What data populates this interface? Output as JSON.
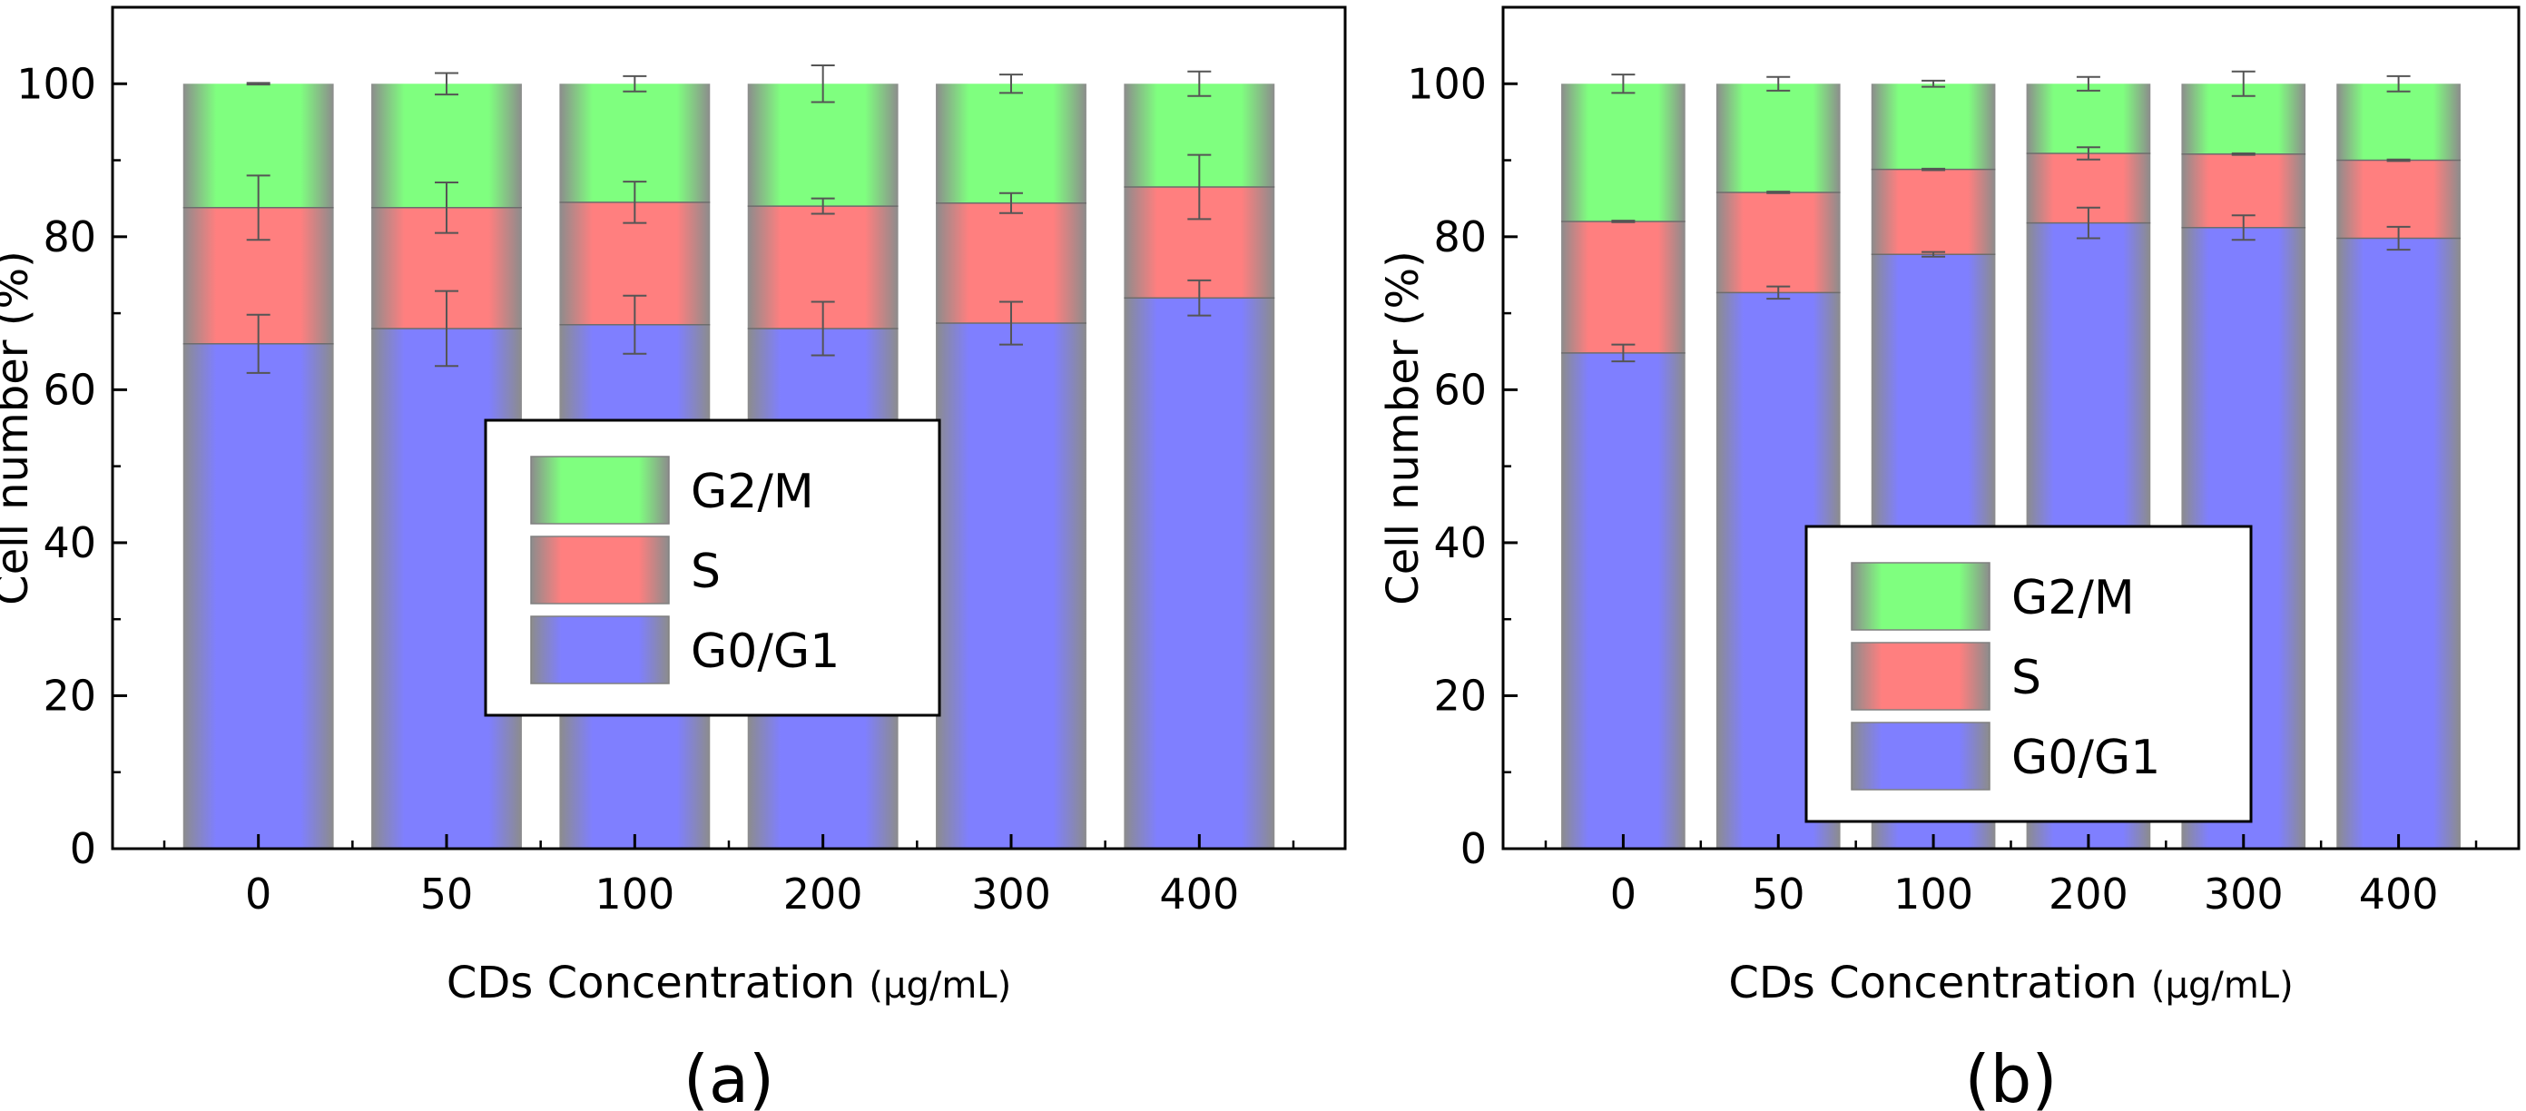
{
  "colors": {
    "G0/G1": "#7f7fff",
    "S": "#ff7f7f",
    "G2/M": "#7fff7f",
    "frame": "#000000",
    "error_bar": "#555555",
    "bar_edge": "#808080"
  },
  "chart_data": [
    {
      "type": "bar",
      "stacked": true,
      "panel_label": "(a)",
      "title": "",
      "xlabel": "CDs Concentration",
      "xlabel_unit": "(μg/mL)",
      "ylabel": "Cell number (%)",
      "categories": [
        "0",
        "50",
        "100",
        "200",
        "300",
        "400"
      ],
      "ylim": [
        0,
        110
      ],
      "yticks": [
        "0",
        "20",
        "40",
        "60",
        "80",
        "100"
      ],
      "legend_position": "center-right",
      "legend": [
        "G2/M",
        "S",
        "G0/G1"
      ],
      "series": [
        {
          "name": "G0/G1",
          "values": [
            66,
            68,
            68.5,
            68,
            68.7,
            72
          ],
          "errors": [
            3.8,
            4.9,
            3.8,
            3.5,
            2.8,
            2.3
          ]
        },
        {
          "name": "S",
          "values": [
            17.8,
            15.8,
            16,
            16,
            15.7,
            14.5
          ],
          "errors": [
            4.2,
            3.3,
            2.7,
            1.0,
            1.3,
            4.2
          ]
        },
        {
          "name": "G2/M",
          "values": [
            16.2,
            16.2,
            15.5,
            16,
            15.6,
            13.5
          ],
          "errors": [
            0.1,
            1.4,
            1.0,
            2.4,
            1.2,
            1.6
          ]
        }
      ]
    },
    {
      "type": "bar",
      "stacked": true,
      "panel_label": "(b)",
      "title": "",
      "xlabel": "CDs Concentration",
      "xlabel_unit": "(μg/mL)",
      "ylabel": "Cell number (%)",
      "categories": [
        "0",
        "50",
        "100",
        "200",
        "300",
        "400"
      ],
      "ylim": [
        0,
        110
      ],
      "yticks": [
        "0",
        "20",
        "40",
        "60",
        "80",
        "100"
      ],
      "legend_position": "lower-right",
      "legend": [
        "G2/M",
        "S",
        "G0/G1"
      ],
      "series": [
        {
          "name": "G0/G1",
          "values": [
            64.8,
            72.7,
            77.7,
            81.8,
            81.2,
            79.8
          ],
          "errors": [
            1.1,
            0.8,
            0.3,
            2.0,
            1.6,
            1.5
          ]
        },
        {
          "name": "S",
          "values": [
            17.2,
            13.1,
            11.1,
            9.1,
            9.6,
            10.2
          ],
          "errors": [
            0.1,
            0.1,
            0.1,
            0.8,
            0.1,
            0.1
          ]
        },
        {
          "name": "G2/M",
          "values": [
            18,
            14.2,
            11.2,
            9.1,
            9.2,
            10
          ],
          "errors": [
            1.2,
            0.9,
            0.4,
            0.9,
            1.6,
            1.0
          ]
        }
      ]
    }
  ]
}
